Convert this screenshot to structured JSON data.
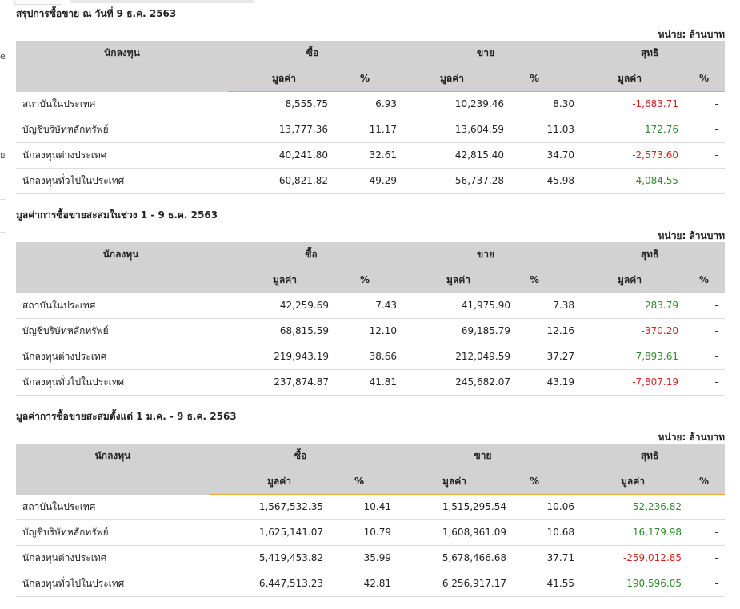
{
  "page": {
    "left_edge_fragments": [
      "e",
      "ย"
    ]
  },
  "sections": [
    {
      "title": "สรุปการซื้อขาย ณ วันที่ 9 ธ.ค. 2563",
      "unit": "หน่วย: ล้านบาท",
      "headers": {
        "investor": "นักลงทุน",
        "buy": "ซื้อ",
        "sell": "ขาย",
        "net": "สุทธิ",
        "value": "มูลค่า",
        "percent": "%"
      },
      "rows": [
        {
          "investor": "สถาบันในประเทศ",
          "buy_value": "8,555.75",
          "buy_pct": "6.93",
          "sell_value": "10,239.46",
          "sell_pct": "8.30",
          "net_value": "-1,683.71",
          "net_pct": "-",
          "net_sign": "neg"
        },
        {
          "investor": "บัญชีบริษัทหลักทรัพย์",
          "buy_value": "13,777.36",
          "buy_pct": "11.17",
          "sell_value": "13,604.59",
          "sell_pct": "11.03",
          "net_value": "172.76",
          "net_pct": "-",
          "net_sign": "pos"
        },
        {
          "investor": "นักลงทุนต่างประเทศ",
          "buy_value": "40,241.80",
          "buy_pct": "32.61",
          "sell_value": "42,815.40",
          "sell_pct": "34.70",
          "net_value": "-2,573.60",
          "net_pct": "-",
          "net_sign": "neg"
        },
        {
          "investor": "นักลงทุนทั่วไปในประเทศ",
          "buy_value": "60,821.82",
          "buy_pct": "49.29",
          "sell_value": "56,737.28",
          "sell_pct": "45.98",
          "net_value": "4,084.55",
          "net_pct": "-",
          "net_sign": "pos"
        }
      ]
    },
    {
      "title": "มูลค่าการซื้อขายสะสมในช่วง 1 - 9 ธ.ค. 2563",
      "unit": "หน่วย: ล้านบาท",
      "headers": {
        "investor": "นักลงทุน",
        "buy": "ซื้อ",
        "sell": "ขาย",
        "net": "สุทธิ",
        "value": "มูลค่า",
        "percent": "%"
      },
      "rows": [
        {
          "investor": "สถาบันในประเทศ",
          "buy_value": "42,259.69",
          "buy_pct": "7.43",
          "sell_value": "41,975.90",
          "sell_pct": "7.38",
          "net_value": "283.79",
          "net_pct": "-",
          "net_sign": "pos"
        },
        {
          "investor": "บัญชีบริษัทหลักทรัพย์",
          "buy_value": "68,815.59",
          "buy_pct": "12.10",
          "sell_value": "69,185.79",
          "sell_pct": "12.16",
          "net_value": "-370.20",
          "net_pct": "-",
          "net_sign": "neg"
        },
        {
          "investor": "นักลงทุนต่างประเทศ",
          "buy_value": "219,943.19",
          "buy_pct": "38.66",
          "sell_value": "212,049.59",
          "sell_pct": "37.27",
          "net_value": "7,893.61",
          "net_pct": "-",
          "net_sign": "pos"
        },
        {
          "investor": "นักลงทุนทั่วไปในประเทศ",
          "buy_value": "237,874.87",
          "buy_pct": "41.81",
          "sell_value": "245,682.07",
          "sell_pct": "43.19",
          "net_value": "-7,807.19",
          "net_pct": "-",
          "net_sign": "neg"
        }
      ]
    },
    {
      "title": "มูลค่าการซื้อขายสะสมตั้งแต่ 1 ม.ค. - 9 ธ.ค. 2563",
      "unit": "หน่วย: ล้านบาท",
      "headers": {
        "investor": "นักลงทุน",
        "buy": "ซื้อ",
        "sell": "ขาย",
        "net": "สุทธิ",
        "value": "มูลค่า",
        "percent": "%"
      },
      "rows": [
        {
          "investor": "สถาบันในประเทศ",
          "buy_value": "1,567,532.35",
          "buy_pct": "10.41",
          "sell_value": "1,515,295.54",
          "sell_pct": "10.06",
          "net_value": "52,236.82",
          "net_pct": "-",
          "net_sign": "pos"
        },
        {
          "investor": "บัญชีบริษัทหลักทรัพย์",
          "buy_value": "1,625,141.07",
          "buy_pct": "10.79",
          "sell_value": "1,608,961.09",
          "sell_pct": "10.68",
          "net_value": "16,179.98",
          "net_pct": "-",
          "net_sign": "pos"
        },
        {
          "investor": "นักลงทุนต่างประเทศ",
          "buy_value": "5,419,453.82",
          "buy_pct": "35.99",
          "sell_value": "5,678,466.68",
          "sell_pct": "37.71",
          "net_value": "-259,012.85",
          "net_pct": "-",
          "net_sign": "neg"
        },
        {
          "investor": "นักลงทุนทั่วไปในประเทศ",
          "buy_value": "6,447,513.23",
          "buy_pct": "42.81",
          "sell_value": "6,256,917.17",
          "sell_pct": "41.55",
          "net_value": "190,596.05",
          "net_pct": "-",
          "net_sign": "pos"
        }
      ]
    }
  ],
  "colors": {
    "header_bg": "#d2d2d2",
    "header_underline": "#f0a830",
    "positive": "#2d8a2d",
    "negative": "#d62323"
  }
}
